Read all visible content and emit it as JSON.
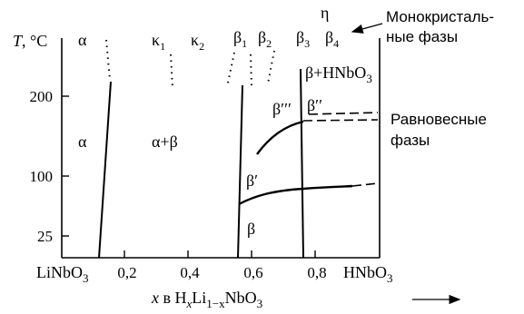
{
  "axes": {
    "y_title_italic": "T",
    "y_title_rest": ", °C",
    "y_ticks": [
      "200",
      "100",
      "25"
    ],
    "x_ticks": [
      "0,2",
      "0,4",
      "0,6",
      "0,8"
    ],
    "x_left_label": "LiNbO",
    "x_left_sub": "3",
    "x_right_label": "HNbO",
    "x_right_sub": "3",
    "x_title": {
      "var": "x",
      "mid": " в H",
      "sub_x": "x",
      "li": "Li",
      "sub_li": "1−x",
      "tail": "NbO",
      "sub_3": "3"
    }
  },
  "phases_top": {
    "alpha": "α",
    "kappa1": "κ",
    "kappa1_sub": "1",
    "kappa2": "κ",
    "kappa2_sub": "2",
    "beta1": "β",
    "beta1_sub": "1",
    "beta2": "β",
    "beta2_sub": "2",
    "beta3": "β",
    "beta3_sub": "3",
    "beta4": "β",
    "beta4_sub": "4",
    "eta": "η"
  },
  "regions": {
    "alpha": "α",
    "alpha_beta": "α+β",
    "beta_prime": "β′",
    "beta_triple_prime": "β′′′",
    "beta_double_prime": "β′′",
    "beta": "β",
    "beta_hnbo": "β+HNbO",
    "beta_hnbo_sub": "3"
  },
  "annotations": {
    "mono_line1": "Монокристаль-",
    "mono_line2": "ные фазы",
    "equil_line1": "Равновесные",
    "equil_line2": "фазы"
  }
}
